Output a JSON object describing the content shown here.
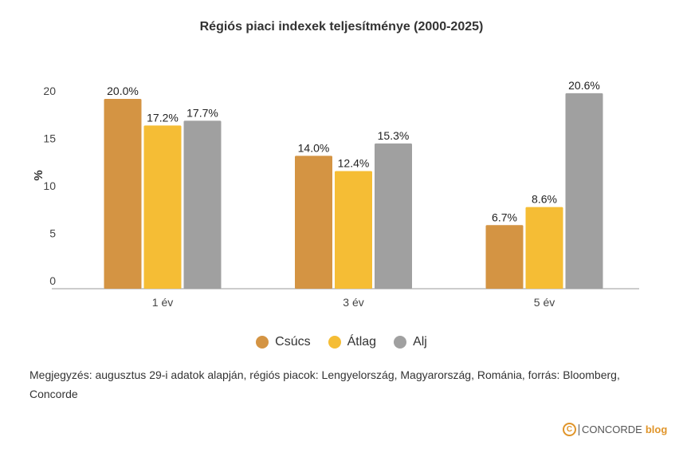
{
  "chart_data": {
    "type": "bar",
    "title": "Régiós piaci indexek teljesítménye (2000-2025)",
    "xlabel": "",
    "ylabel": "%",
    "ylim": [
      0,
      20
    ],
    "yticks": [
      "0",
      "5",
      "10",
      "15",
      "20"
    ],
    "categories": [
      "1 év",
      "3 év",
      "5 év"
    ],
    "series": [
      {
        "name": "Csúcs",
        "color": "#d49443",
        "values": [
          20.0,
          14.0,
          6.7
        ],
        "labels": [
          "20.0%",
          "14.0%",
          "6.7%"
        ]
      },
      {
        "name": "Átlag",
        "color": "#f5bd35",
        "values": [
          17.2,
          12.4,
          8.6
        ],
        "labels": [
          "17.2%",
          "12.4%",
          "8.6%"
        ]
      },
      {
        "name": "Alj",
        "color": "#a0a0a0",
        "values": [
          17.7,
          15.3,
          20.6
        ],
        "labels": [
          "17.7%",
          "15.3%",
          "20.6%"
        ]
      }
    ],
    "legend_position": "bottom",
    "grid": false
  },
  "note": "Megjegyzés: augusztus 29-i adatok alapján, régiós piacok: Lengyelország, Magyarország, Románia, forrás: Bloomberg, Concorde",
  "logo": {
    "brand": "CONCORDE",
    "suffix": "blog",
    "mark": "C"
  }
}
